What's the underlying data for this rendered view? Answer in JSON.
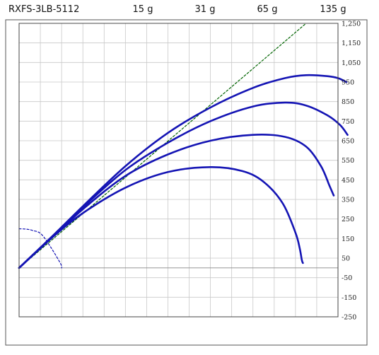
{
  "header": {
    "model": "RXFS-3LB-5112",
    "weights": [
      "15 g",
      "31 g",
      "65 g",
      "135 g"
    ]
  },
  "chart_data": {
    "type": "line",
    "title": "RXFS-3LB-5112",
    "xlim": [
      0,
      1500
    ],
    "ylim": [
      -250,
      1250
    ],
    "yticks": [
      1250,
      1150,
      1050,
      950,
      850,
      750,
      650,
      550,
      450,
      350,
      250,
      150,
      50,
      -50,
      -150,
      -250
    ],
    "ytick_labels": [
      "1,250",
      "1,150",
      "1,050",
      "950",
      "850",
      "750",
      "650",
      "550",
      "450",
      "350",
      "250",
      "150",
      "50",
      "-50",
      "-150",
      "-250"
    ],
    "grid": true,
    "grid_step": 100,
    "series": [
      {
        "color": "#006400",
        "style": "dashed",
        "x": [
          0,
          1350
        ],
        "y": [
          0,
          1250
        ]
      },
      {
        "name": "15 g",
        "color": "#1414b4",
        "style": "solid",
        "x": [
          0,
          150,
          300,
          500,
          700,
          900,
          1050,
          1150,
          1240,
          1300,
          1320,
          1330,
          1335
        ],
        "y": [
          0,
          150,
          280,
          410,
          490,
          515,
          495,
          440,
          330,
          180,
          100,
          40,
          25
        ]
      },
      {
        "name": "31 g",
        "color": "#1414b4",
        "style": "solid",
        "x": [
          0,
          150,
          300,
          500,
          700,
          900,
          1100,
          1250,
          1350,
          1420,
          1460,
          1480
        ],
        "y": [
          0,
          150,
          300,
          470,
          580,
          650,
          680,
          670,
          620,
          520,
          420,
          370
        ]
      },
      {
        "name": "65 g",
        "color": "#1414b4",
        "style": "solid",
        "x": [
          0,
          150,
          300,
          500,
          700,
          900,
          1100,
          1250,
          1350,
          1450,
          1510,
          1545
        ],
        "y": [
          0,
          155,
          310,
          500,
          640,
          750,
          825,
          845,
          830,
          780,
          730,
          680
        ]
      },
      {
        "name": "135 g",
        "color": "#1414b4",
        "style": "solid",
        "x": [
          0,
          150,
          300,
          500,
          700,
          900,
          1100,
          1250,
          1350,
          1450,
          1500,
          1540
        ],
        "y": [
          0,
          155,
          315,
          520,
          690,
          820,
          920,
          970,
          985,
          980,
          970,
          950
        ]
      },
      {
        "color": "#1414b4",
        "style": "dashed",
        "x": [
          0,
          35,
          65,
          104,
          150,
          196,
          200
        ],
        "y": [
          200,
          198,
          191,
          173,
          104,
          20,
          0
        ]
      }
    ]
  }
}
